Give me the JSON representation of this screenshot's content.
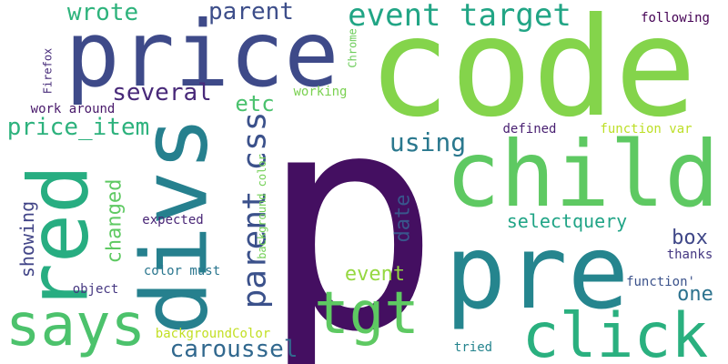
{
  "words": [
    {
      "id": "p",
      "text": "p",
      "color": "#440f61",
      "vertical": false
    },
    {
      "id": "code",
      "text": "code",
      "color": "#84d44b",
      "vertical": false
    },
    {
      "id": "price",
      "text": "price",
      "color": "#3e4a89",
      "vertical": false
    },
    {
      "id": "pre",
      "text": "pre",
      "color": "#25858e",
      "vertical": false
    },
    {
      "id": "child",
      "text": "child",
      "color": "#5ec962",
      "vertical": false
    },
    {
      "id": "divs",
      "text": "divs",
      "color": "#26808e",
      "vertical": true
    },
    {
      "id": "red",
      "text": "red",
      "color": "#27ad81",
      "vertical": true
    },
    {
      "id": "click",
      "text": "click",
      "color": "#2ab07f",
      "vertical": false
    },
    {
      "id": "says",
      "text": "says",
      "color": "#4cc26c",
      "vertical": false
    },
    {
      "id": "tgt",
      "text": "tgt",
      "color": "#5ec962",
      "vertical": false
    },
    {
      "id": "event-target",
      "text": "event target",
      "color": "#21a585",
      "vertical": false
    },
    {
      "id": "parent-css",
      "text": "parent css",
      "color": "#3b518b",
      "vertical": true
    },
    {
      "id": "price-item",
      "text": "price_item",
      "color": "#2db27d",
      "vertical": false
    },
    {
      "id": "several",
      "text": "several",
      "color": "#482979",
      "vertical": false
    },
    {
      "id": "wrote",
      "text": "wrote",
      "color": "#2eb37c",
      "vertical": false
    },
    {
      "id": "parent",
      "text": "parent",
      "color": "#3d4e8a",
      "vertical": false
    },
    {
      "id": "caroussel",
      "text": "caroussel",
      "color": "#31688e",
      "vertical": false
    },
    {
      "id": "showing",
      "text": "showing",
      "color": "#414487",
      "vertical": true
    },
    {
      "id": "changed",
      "text": "changed",
      "color": "#5ec962",
      "vertical": true
    },
    {
      "id": "using",
      "text": "using",
      "color": "#2a788e",
      "vertical": false
    },
    {
      "id": "etc",
      "text": "etc",
      "color": "#4ac16d",
      "vertical": false
    },
    {
      "id": "date",
      "text": "date",
      "color": "#39568c",
      "vertical": true
    },
    {
      "id": "selectquery",
      "text": "selectquery",
      "color": "#20a486",
      "vertical": false
    },
    {
      "id": "box",
      "text": "box",
      "color": "#3f4788",
      "vertical": false
    },
    {
      "id": "one",
      "text": "one",
      "color": "#2c728e",
      "vertical": false
    },
    {
      "id": "event",
      "text": "event",
      "color": "#95d840",
      "vertical": false
    },
    {
      "id": "working",
      "text": "working",
      "color": "#7ad151",
      "vertical": false
    },
    {
      "id": "following",
      "text": "following",
      "color": "#440154",
      "vertical": false
    },
    {
      "id": "firefox",
      "text": "Firefox",
      "color": "#472c7a",
      "vertical": true
    },
    {
      "id": "chrome",
      "text": "Chrome",
      "color": "#6ccd5a",
      "vertical": true
    },
    {
      "id": "work-around",
      "text": "work around",
      "color": "#48186a",
      "vertical": false
    },
    {
      "id": "defined",
      "text": "defined",
      "color": "#481f71",
      "vertical": false
    },
    {
      "id": "function-var",
      "text": "function var",
      "color": "#bddf26",
      "vertical": false
    },
    {
      "id": "background-color",
      "text": "background color",
      "color": "#73d056",
      "vertical": true
    },
    {
      "id": "expected",
      "text": "expected",
      "color": "#482576",
      "vertical": false
    },
    {
      "id": "color-must",
      "text": "color must",
      "color": "#2a768e",
      "vertical": false
    },
    {
      "id": "object",
      "text": "object",
      "color": "#453781",
      "vertical": false
    },
    {
      "id": "thanks",
      "text": "thanks",
      "color": "#453882",
      "vertical": false
    },
    {
      "id": "function-quote",
      "text": "function'",
      "color": "#3b528b",
      "vertical": false
    },
    {
      "id": "backgroundcolor",
      "text": "backgroundColor",
      "color": "#c2df23",
      "vertical": false
    },
    {
      "id": "tried",
      "text": "tried",
      "color": "#25848e",
      "vertical": false
    }
  ]
}
